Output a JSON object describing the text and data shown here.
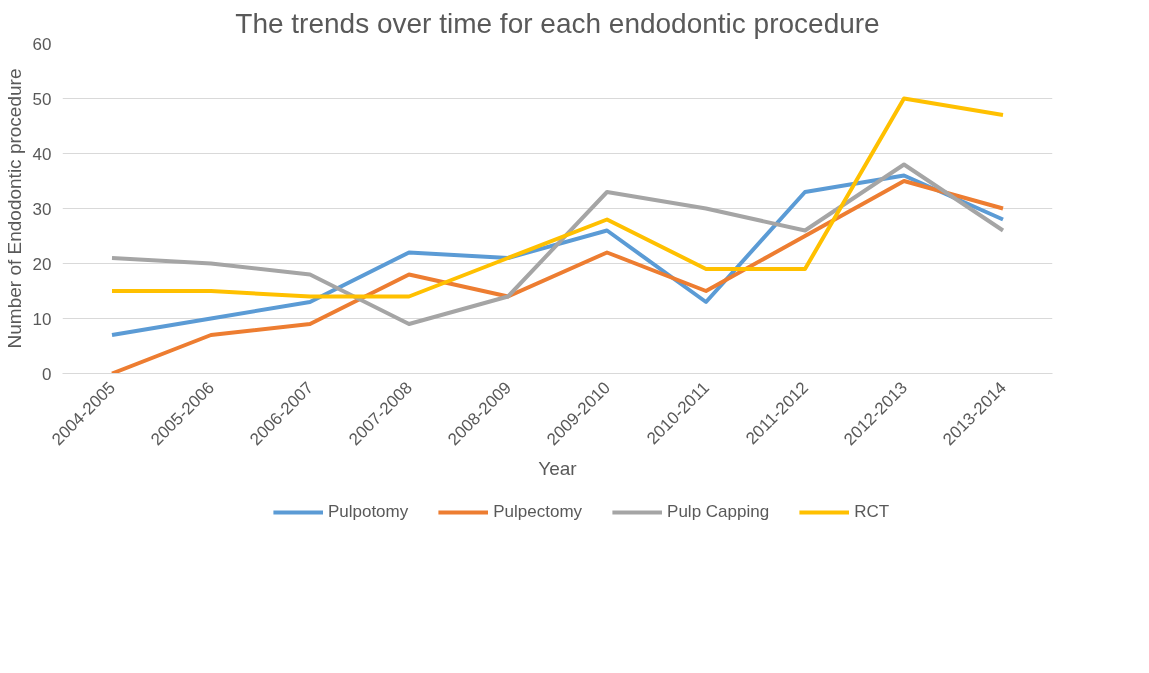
{
  "chart_data": {
    "type": "line",
    "title": "The trends over time for each endodontic procedure",
    "xlabel": "Year",
    "ylabel": "Number of Endodontic procedure",
    "categories": [
      "2004-2005",
      "2005-2006",
      "2006-2007",
      "2007-2008",
      "2008-2009",
      "2009-2010",
      "2010-2011",
      "2011-2012",
      "2012-2013",
      "2013-2014"
    ],
    "series": [
      {
        "name": "Pulpotomy",
        "color": "#5b9bd5",
        "values": [
          7,
          10,
          13,
          22,
          21,
          26,
          13,
          33,
          36,
          28
        ]
      },
      {
        "name": "Pulpectomy",
        "color": "#ed7d31",
        "values": [
          0,
          7,
          9,
          18,
          14,
          22,
          15,
          25,
          35,
          30
        ]
      },
      {
        "name": "Pulp Capping",
        "color": "#a5a5a5",
        "values": [
          21,
          20,
          18,
          9,
          14,
          33,
          30,
          26,
          38,
          26
        ]
      },
      {
        "name": "RCT",
        "color": "#ffc000",
        "values": [
          15,
          15,
          14,
          14,
          21,
          28,
          19,
          19,
          50,
          47
        ]
      }
    ],
    "ylim": [
      0,
      60
    ],
    "yticks": [
      0,
      10,
      20,
      30,
      40,
      50,
      60
    ],
    "grid": "y",
    "legend": "bottom",
    "marker": "none",
    "line_style": "solid"
  }
}
